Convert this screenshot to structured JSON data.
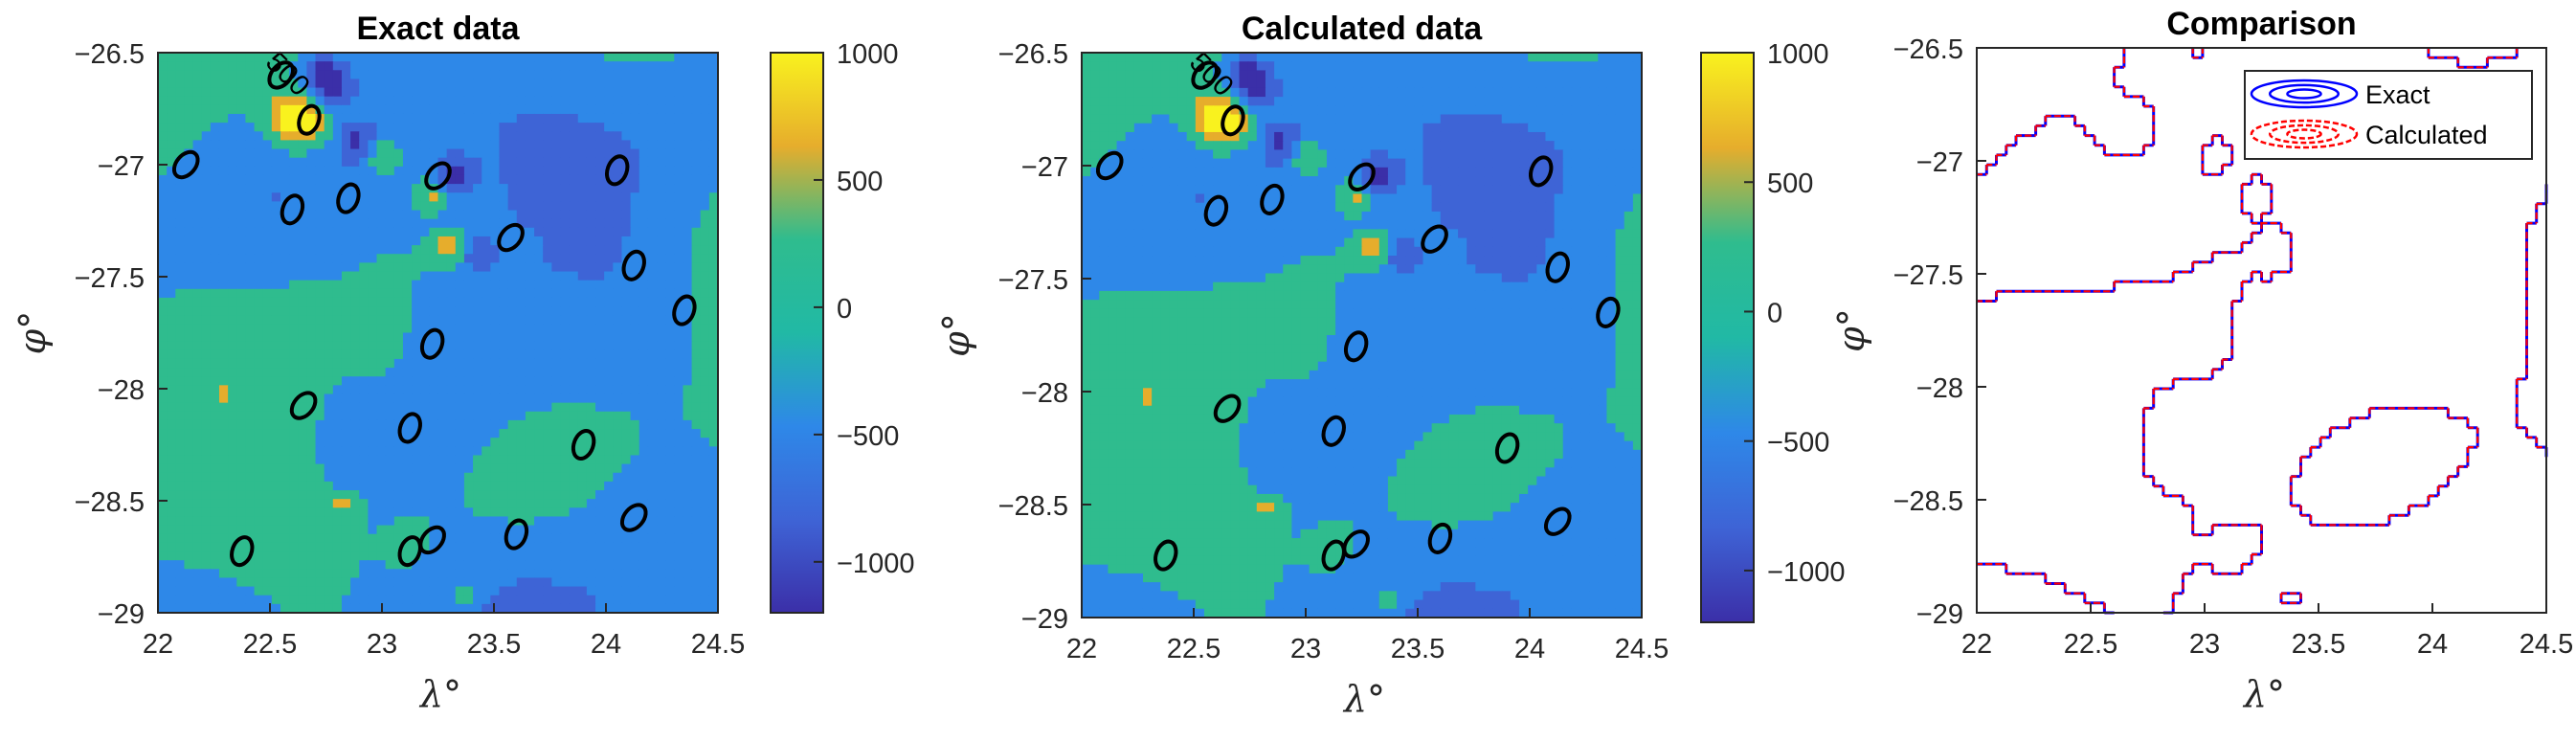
{
  "chart_data": [
    {
      "type": "contour",
      "title": "Exact data",
      "xlabel": "λ°",
      "ylabel": "φ°",
      "xlim": [
        22,
        24.5
      ],
      "ylim": [
        -29,
        -26.5
      ],
      "xticks": [
        "22",
        "22.5",
        "23",
        "23.5",
        "24",
        "24.5"
      ],
      "yticks": [
        "-26.5",
        "-27",
        "-27.5",
        "-28",
        "-28.5",
        "-29"
      ],
      "colorbar": {
        "ticks": [
          "1000",
          "500",
          "0",
          "-500",
          "-1000"
        ],
        "range": [
          -1200,
          1000
        ]
      },
      "contour_labels": [
        "500",
        "0"
      ]
    },
    {
      "type": "contour",
      "title": "Calculated data",
      "xlabel": "λ°",
      "ylabel": "φ°",
      "xlim": [
        22,
        24.5
      ],
      "ylim": [
        -29,
        -26.5
      ],
      "xticks": [
        "22",
        "22.5",
        "23",
        "23.5",
        "24",
        "24.5"
      ],
      "yticks": [
        "-26.5",
        "-27",
        "-27.5",
        "-28",
        "-28.5",
        "-29"
      ],
      "colorbar": {
        "ticks": [
          "1000",
          "500",
          "0",
          "-500",
          "-1000"
        ],
        "range": [
          -1200,
          1000
        ]
      },
      "contour_labels": [
        "500",
        "0"
      ]
    },
    {
      "type": "contour",
      "title": "Comparison",
      "xlabel": "λ°",
      "ylabel": "φ°",
      "xlim": [
        22,
        24.5
      ],
      "ylim": [
        -29,
        -26.5
      ],
      "xticks": [
        "22",
        "22.5",
        "23",
        "23.5",
        "24",
        "24.5"
      ],
      "yticks": [
        "-26.5",
        "-27",
        "-27.5",
        "-28",
        "-28.5",
        "-29"
      ],
      "legend": {
        "placement": "top-right",
        "entries": [
          "Exact",
          "Calculated"
        ]
      },
      "series_colors": {
        "Exact": "#0000ff",
        "Calculated": "#ff0000"
      }
    }
  ],
  "colors": {
    "level_neg_high": "#3b2fa8",
    "level_neg_mid": "#3e64d6",
    "level_neg": "#2e88e8",
    "level_zero": "#21b9a5",
    "level_pos": "#2fbc8e",
    "level_pos_mid": "#e6ad2c",
    "level_pos_high": "#f9f21e"
  }
}
